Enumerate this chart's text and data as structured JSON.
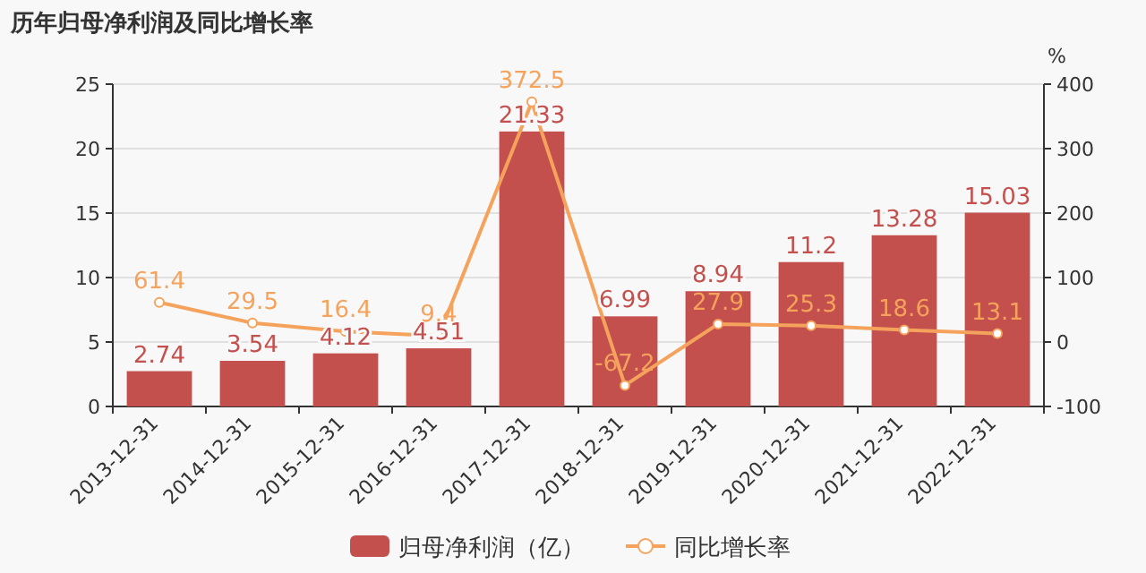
{
  "chart_data": {
    "type": "bar",
    "title": "历年归母净利润及同比增长率",
    "y2label": "%",
    "categories": [
      "2013-12-31",
      "2014-12-31",
      "2015-12-31",
      "2016-12-31",
      "2017-12-31",
      "2018-12-31",
      "2019-12-31",
      "2020-12-31",
      "2021-12-31",
      "2022-12-31"
    ],
    "series": [
      {
        "name": "归母净利润（亿）",
        "color": "#c4504e",
        "values": [
          2.74,
          3.54,
          4.12,
          4.51,
          21.33,
          6.99,
          8.94,
          11.2,
          13.28,
          15.03
        ]
      },
      {
        "name": "同比增长率",
        "type": "line",
        "axis": "y2",
        "color": "#f5a35c",
        "marker": "circle",
        "values": [
          61.4,
          29.5,
          16.4,
          9.4,
          372.5,
          -67.2,
          27.9,
          25.3,
          18.6,
          13.1
        ]
      }
    ],
    "ylim": [
      0,
      25
    ],
    "yticks": [
      0,
      5,
      10,
      15,
      20,
      25
    ],
    "y2lim": [
      -100,
      400
    ],
    "y2ticks": [
      -100,
      0,
      100,
      200,
      300,
      400
    ],
    "data_labels": true,
    "grid": "y",
    "legend": "bottom"
  }
}
